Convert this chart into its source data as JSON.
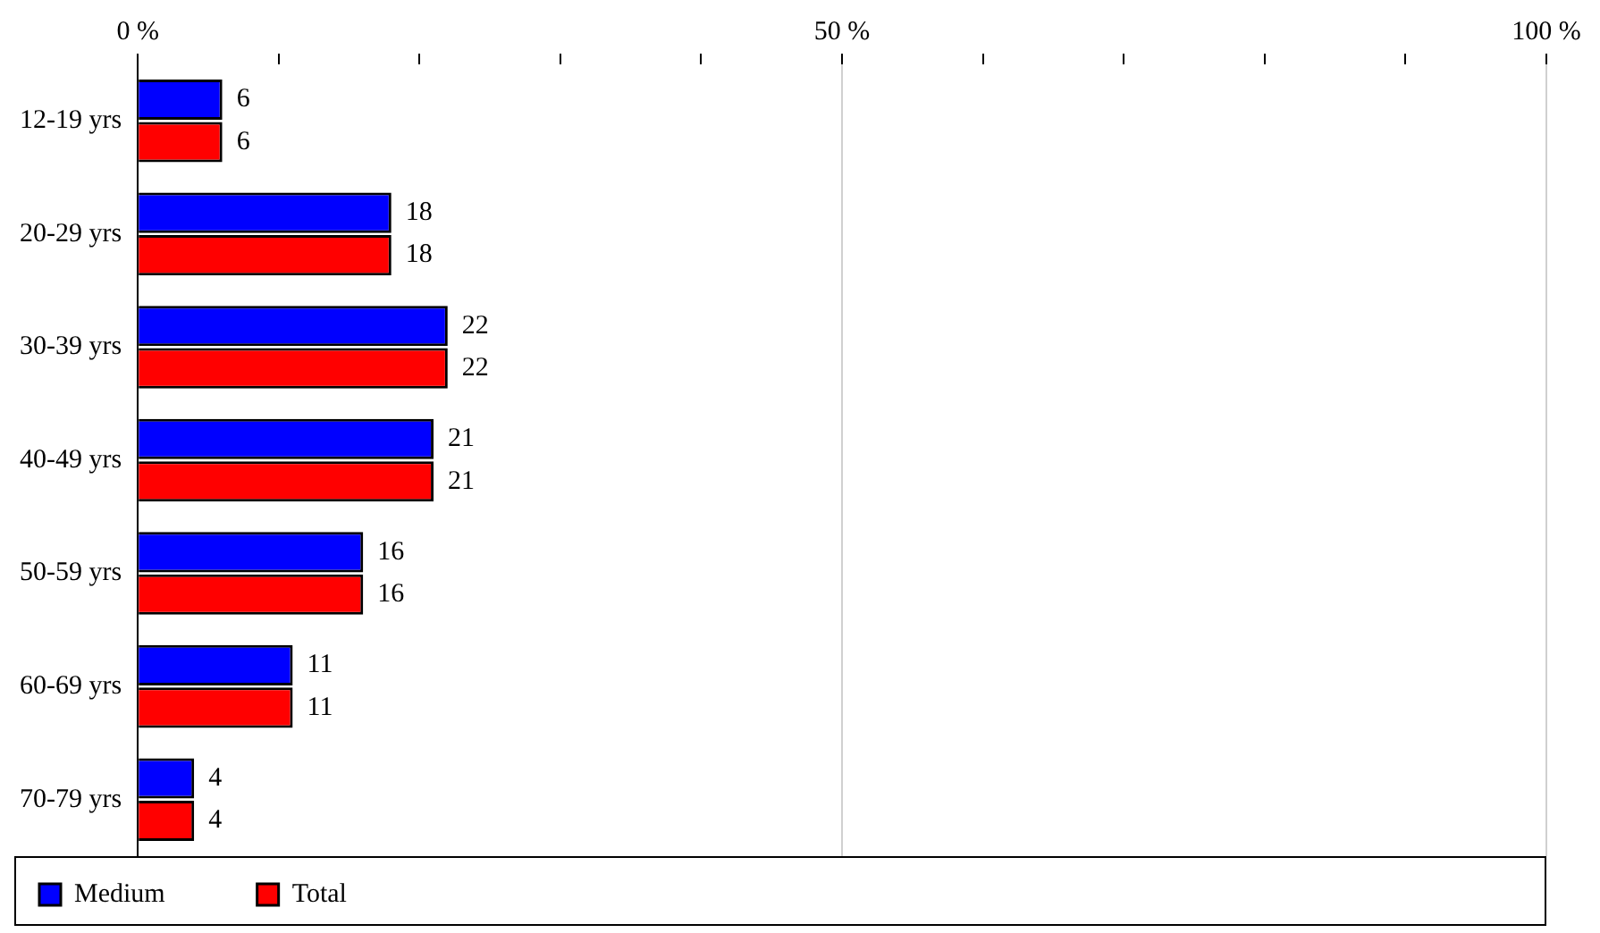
{
  "chart_data": {
    "type": "bar",
    "orientation": "horizontal",
    "categories": [
      "12-19 yrs",
      "20-29 yrs",
      "30-39 yrs",
      "40-49 yrs",
      "50-59 yrs",
      "60-69 yrs",
      "70-79 yrs"
    ],
    "series": [
      {
        "name": "Medium",
        "color": "#0000ff",
        "values": [
          6,
          18,
          22,
          21,
          16,
          11,
          4
        ]
      },
      {
        "name": "Total",
        "color": "#ff0000",
        "values": [
          6,
          18,
          22,
          21,
          16,
          11,
          4
        ]
      }
    ],
    "xlim": [
      0,
      100
    ],
    "xticks": [
      {
        "value": 0,
        "label": "0 %"
      },
      {
        "value": 10,
        "label": null
      },
      {
        "value": 20,
        "label": null
      },
      {
        "value": 30,
        "label": null
      },
      {
        "value": 40,
        "label": null
      },
      {
        "value": 50,
        "label": "50 %"
      },
      {
        "value": 60,
        "label": null
      },
      {
        "value": 70,
        "label": null
      },
      {
        "value": 80,
        "label": null
      },
      {
        "value": 90,
        "label": null
      },
      {
        "value": 100,
        "label": "100 %"
      }
    ],
    "grid": "x",
    "legend": "bottom left",
    "data_labels": true
  }
}
